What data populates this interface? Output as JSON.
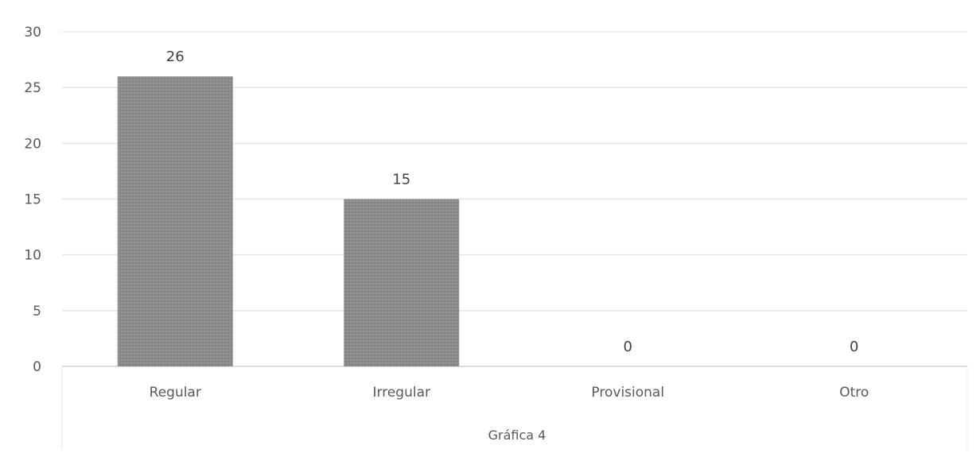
{
  "chart_data": {
    "type": "bar",
    "categories": [
      "Regular",
      "Irregular",
      "Provisional",
      "Otro"
    ],
    "values": [
      26,
      15,
      0,
      0
    ],
    "data_labels": [
      "26",
      "15",
      "0",
      "0"
    ],
    "y_ticks": [
      "0",
      "5",
      "10",
      "15",
      "20",
      "25",
      "30"
    ],
    "ylim": [
      0,
      30
    ],
    "grid": true,
    "legend": "none",
    "caption": "Gráfica 4",
    "bar_color": "#8a8a8a",
    "bar_highlight_color": "#9a9a9a"
  }
}
